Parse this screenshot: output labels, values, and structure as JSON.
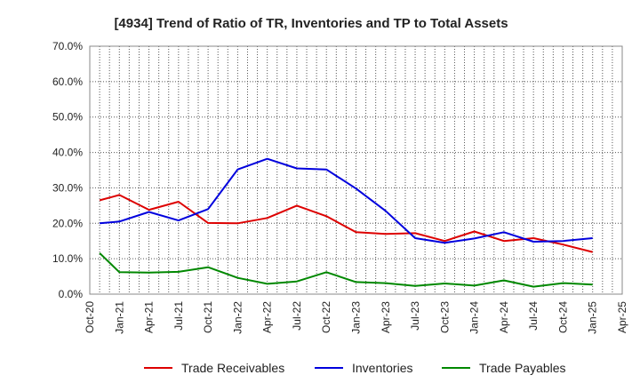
{
  "chart_data": {
    "type": "line",
    "title": "[4934]  Trend of Ratio of TR, Inventories and TP to Total Assets",
    "xlabel": "",
    "ylabel": "",
    "ylim": [
      0,
      70
    ],
    "y_ticks": [
      "0.0%",
      "10.0%",
      "20.0%",
      "30.0%",
      "40.0%",
      "50.0%",
      "60.0%",
      "70.0%"
    ],
    "x_ticks": [
      "Oct-20",
      "Jan-21",
      "Apr-21",
      "Jul-21",
      "Oct-21",
      "Jan-22",
      "Apr-22",
      "Jul-22",
      "Oct-22",
      "Jan-23",
      "Apr-23",
      "Jul-23",
      "Oct-23",
      "Jan-24",
      "Apr-24",
      "Jul-24",
      "Oct-24",
      "Jan-25",
      "Apr-25"
    ],
    "grid": true,
    "legend_position": "bottom",
    "x": [
      "Nov-20",
      "Jan-21",
      "Apr-21",
      "Jul-21",
      "Oct-21",
      "Jan-22",
      "Mar-22",
      "Apr-22",
      "Jul-22",
      "Oct-22",
      "Jan-23",
      "Apr-23",
      "Jul-23",
      "Oct-23",
      "Jan-24",
      "Apr-24",
      "Jul-24",
      "Oct-24",
      "Jan-25"
    ],
    "series": [
      {
        "name": "Trade Receivables",
        "color": "#dd0000",
        "values": [
          26.5,
          28.0,
          null,
          26.1,
          20.1,
          20.0,
          null,
          21.5,
          25.0,
          22.0,
          17.5,
          17.0,
          17.2,
          15.0,
          17.7,
          15.0,
          15.8,
          14.0,
          11.9
        ]
      },
      {
        "name": "Inventories",
        "color": "#0000dd",
        "values": [
          20.0,
          20.5,
          23.2,
          20.8,
          24.0,
          35.2,
          null,
          38.2,
          35.5,
          35.2,
          29.8,
          23.5,
          15.8,
          14.5,
          15.7,
          17.5,
          14.8,
          15.0,
          15.8
        ]
      },
      {
        "name": "Trade Payables",
        "color": "#008800",
        "values": [
          11.6,
          6.2,
          6.1,
          6.3,
          7.6,
          4.6,
          null,
          2.9,
          3.6,
          6.2,
          3.4,
          3.1,
          2.3,
          3.0,
          2.4,
          3.9,
          2.1,
          3.1,
          2.7
        ]
      }
    ],
    "extra_points": {
      "Trade Receivables": [
        [
          "Apr-21",
          23.8
        ]
      ]
    }
  }
}
